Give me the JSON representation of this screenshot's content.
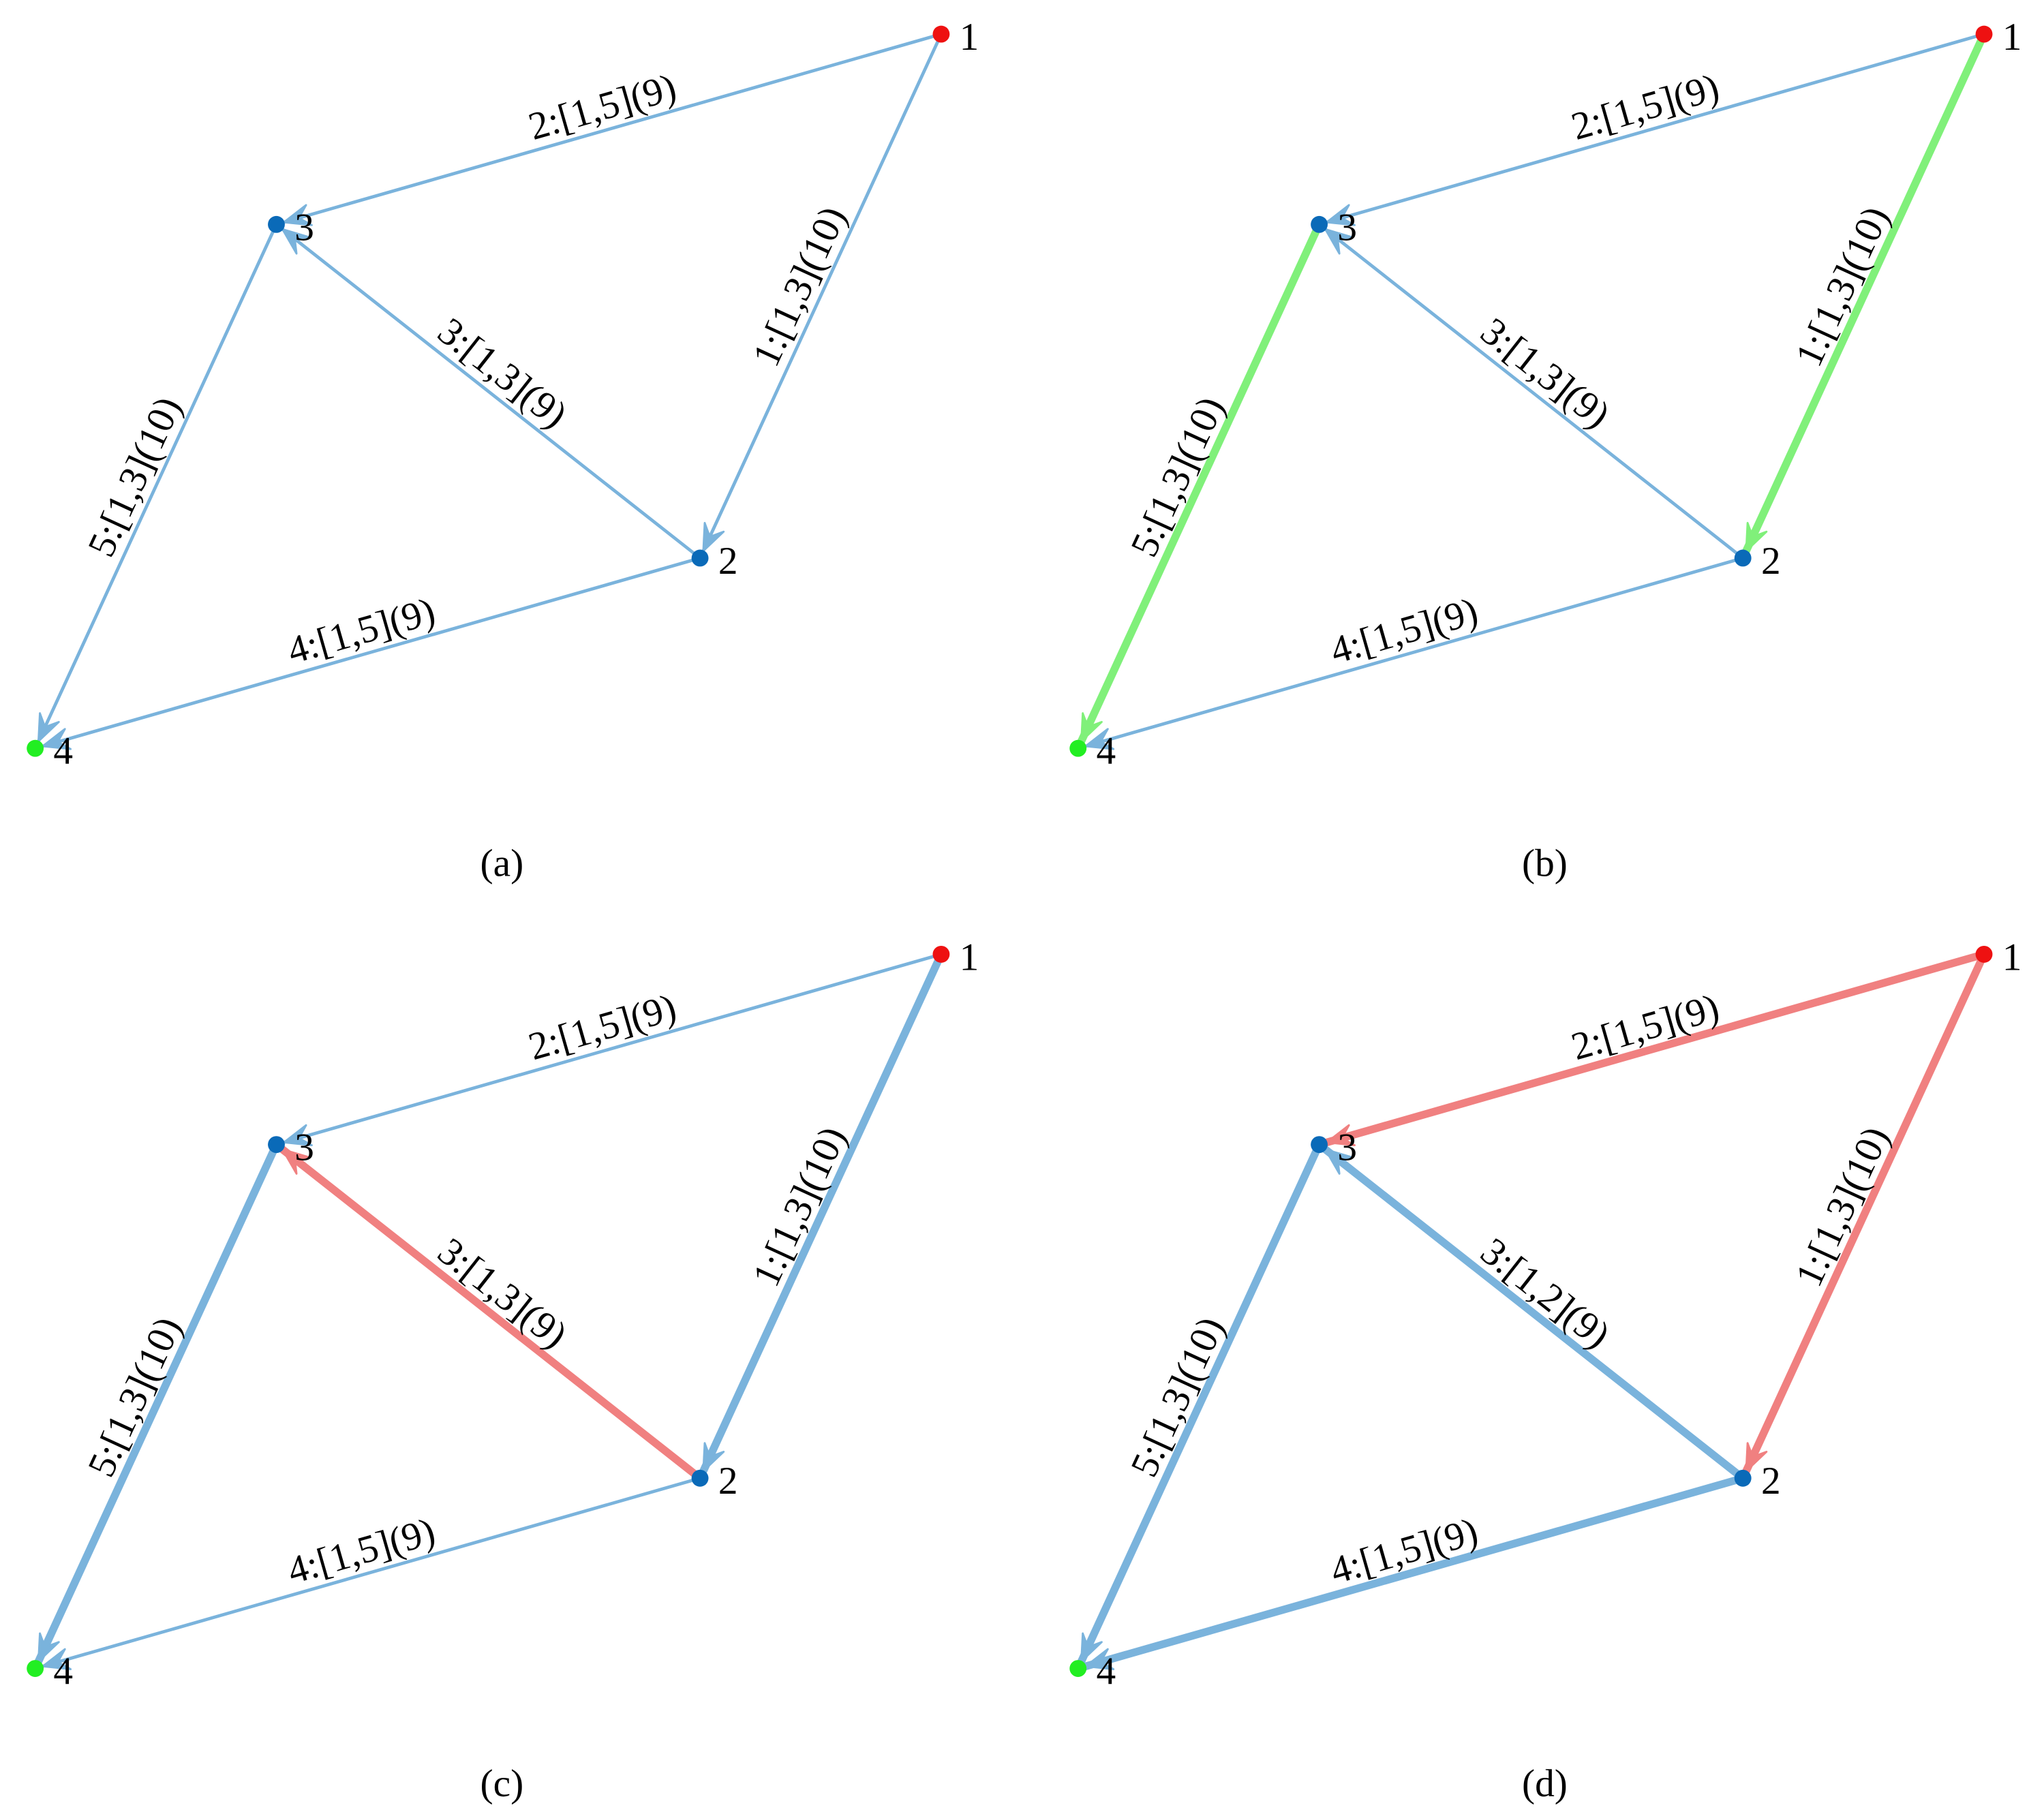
{
  "panels": [
    {
      "caption": "(a)",
      "nodes": [
        {
          "label": "1",
          "color": "#ee1111"
        },
        {
          "label": "2",
          "color": "#0a6ab8"
        },
        {
          "label": "3",
          "color": "#0a6ab8"
        },
        {
          "label": "4",
          "color": "#22ee22"
        }
      ],
      "edges": [
        {
          "label": "1:[1,3](10)",
          "color": "#7ab3dc",
          "weight": "thin"
        },
        {
          "label": "2:[1,5](9)",
          "color": "#7ab3dc",
          "weight": "thin"
        },
        {
          "label": "3:[1,3](9)",
          "color": "#7ab3dc",
          "weight": "thin"
        },
        {
          "label": "4:[1,5](9)",
          "color": "#7ab3dc",
          "weight": "thin"
        },
        {
          "label": "5:[1,3](10)",
          "color": "#7ab3dc",
          "weight": "thin"
        }
      ]
    },
    {
      "caption": "(b)",
      "nodes": [
        {
          "label": "1",
          "color": "#ee1111"
        },
        {
          "label": "2",
          "color": "#0a6ab8"
        },
        {
          "label": "3",
          "color": "#0a6ab8"
        },
        {
          "label": "4",
          "color": "#22ee22"
        }
      ],
      "edges": [
        {
          "label": "1:[1,3](10)",
          "color": "#80f07a",
          "weight": "thick"
        },
        {
          "label": "2:[1,5](9)",
          "color": "#7ab3dc",
          "weight": "thin"
        },
        {
          "label": "3:[1,3](9)",
          "color": "#7ab3dc",
          "weight": "thin"
        },
        {
          "label": "4:[1,5](9)",
          "color": "#7ab3dc",
          "weight": "thin"
        },
        {
          "label": "5:[1,3](10)",
          "color": "#80f07a",
          "weight": "thick"
        }
      ]
    },
    {
      "caption": "(c)",
      "nodes": [
        {
          "label": "1",
          "color": "#ee1111"
        },
        {
          "label": "2",
          "color": "#0a6ab8"
        },
        {
          "label": "3",
          "color": "#0a6ab8"
        },
        {
          "label": "4",
          "color": "#22ee22"
        }
      ],
      "edges": [
        {
          "label": "1:[1,3](10)",
          "color": "#7ab3dc",
          "weight": "thick"
        },
        {
          "label": "2:[1,5](9)",
          "color": "#7ab3dc",
          "weight": "thin"
        },
        {
          "label": "3:[1,3](9)",
          "color": "#f08080",
          "weight": "thick"
        },
        {
          "label": "4:[1,5](9)",
          "color": "#7ab3dc",
          "weight": "thin"
        },
        {
          "label": "5:[1,3](10)",
          "color": "#7ab3dc",
          "weight": "thick"
        }
      ]
    },
    {
      "caption": "(d)",
      "nodes": [
        {
          "label": "1",
          "color": "#ee1111"
        },
        {
          "label": "2",
          "color": "#0a6ab8"
        },
        {
          "label": "3",
          "color": "#0a6ab8"
        },
        {
          "label": "4",
          "color": "#22ee22"
        }
      ],
      "edges": [
        {
          "label": "1:[1,3](10)",
          "color": "#f08080",
          "weight": "thick"
        },
        {
          "label": "2:[1,5](9)",
          "color": "#f08080",
          "weight": "thick"
        },
        {
          "label": "3:[1,2](9)",
          "color": "#7ab3dc",
          "weight": "thick"
        },
        {
          "label": "4:[1,5](9)",
          "color": "#7ab3dc",
          "weight": "thick"
        },
        {
          "label": "5:[1,3](10)",
          "color": "#7ab3dc",
          "weight": "thick"
        }
      ]
    }
  ]
}
